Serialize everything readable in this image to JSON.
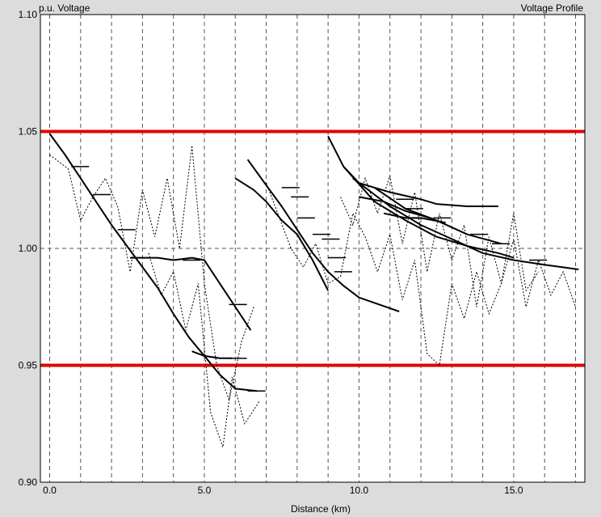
{
  "chart_data": {
    "type": "line",
    "title": "Voltage Profile",
    "ylabel": "p.u. Voltage",
    "xlabel": "Distance (km)",
    "xlim": [
      -0.3,
      17.3
    ],
    "ylim": [
      0.9,
      1.1
    ],
    "x_ticks": [
      {
        "value": 0,
        "label": "0.0"
      },
      {
        "value": 5,
        "label": "5.0"
      },
      {
        "value": 10,
        "label": "10.0"
      },
      {
        "value": 15,
        "label": "15.0"
      }
    ],
    "y_ticks": [
      {
        "value": 0.9,
        "label": "0.90"
      },
      {
        "value": 0.95,
        "label": "0.95"
      },
      {
        "value": 1.0,
        "label": "1.00"
      },
      {
        "value": 1.05,
        "label": "1.05"
      },
      {
        "value": 1.1,
        "label": "1.10"
      }
    ],
    "vertical_grid_x": [
      0,
      1,
      2,
      3,
      4,
      5,
      6,
      7,
      8,
      9,
      10,
      11,
      12,
      13,
      14,
      15,
      16,
      17
    ],
    "grid": true,
    "limit_lines": [
      {
        "value": 1.05,
        "color": "#e00000"
      },
      {
        "value": 0.95,
        "color": "#e00000"
      }
    ],
    "series": [
      {
        "style": "solid",
        "points": [
          [
            0.0,
            1.049
          ],
          [
            0.5,
            1.04
          ],
          [
            1.0,
            1.03
          ],
          [
            1.5,
            1.02
          ],
          [
            2.0,
            1.01
          ],
          [
            2.5,
            1.001
          ],
          [
            3.0,
            0.992
          ],
          [
            3.5,
            0.983
          ],
          [
            4.0,
            0.972
          ],
          [
            4.5,
            0.962
          ],
          [
            5.0,
            0.954
          ],
          [
            5.5,
            0.946
          ],
          [
            6.0,
            0.94
          ],
          [
            6.7,
            0.939
          ]
        ]
      },
      {
        "style": "solid",
        "points": [
          [
            2.6,
            0.996
          ],
          [
            3.5,
            0.996
          ],
          [
            4.0,
            0.995
          ],
          [
            4.6,
            0.996
          ],
          [
            5.0,
            0.995
          ],
          [
            5.5,
            0.985
          ],
          [
            6.0,
            0.975
          ],
          [
            6.5,
            0.965
          ]
        ]
      },
      {
        "style": "solid",
        "points": [
          [
            4.6,
            0.956
          ],
          [
            5.0,
            0.954
          ],
          [
            5.5,
            0.953
          ],
          [
            5.9,
            0.953
          ]
        ]
      },
      {
        "style": "solid",
        "points": [
          [
            6.4,
            1.038
          ],
          [
            7.0,
            1.027
          ],
          [
            7.5,
            1.018
          ],
          [
            8.0,
            1.008
          ],
          [
            8.5,
            0.998
          ],
          [
            9.0,
            0.99
          ],
          [
            9.5,
            0.984
          ],
          [
            10.0,
            0.979
          ],
          [
            11.3,
            0.973
          ]
        ]
      },
      {
        "style": "solid",
        "points": [
          [
            6.0,
            1.03
          ],
          [
            6.6,
            1.025
          ],
          [
            7.0,
            1.02
          ],
          [
            7.5,
            1.012
          ],
          [
            8.0,
            1.006
          ],
          [
            8.5,
            0.995
          ],
          [
            9.0,
            0.982
          ]
        ]
      },
      {
        "style": "solid",
        "points": [
          [
            9.0,
            1.048
          ],
          [
            9.5,
            1.035
          ],
          [
            10.0,
            1.028
          ],
          [
            10.5,
            1.026
          ],
          [
            11.0,
            1.024
          ],
          [
            12.0,
            1.021
          ],
          [
            12.5,
            1.019
          ],
          [
            13.5,
            1.018
          ],
          [
            14.5,
            1.018
          ]
        ]
      },
      {
        "style": "solid",
        "points": [
          [
            9.5,
            1.035
          ],
          [
            10.5,
            1.02
          ],
          [
            11.5,
            1.012
          ],
          [
            12.5,
            1.005
          ],
          [
            13.5,
            1.001
          ],
          [
            14.5,
            0.998
          ],
          [
            15.0,
            0.996
          ]
        ]
      },
      {
        "style": "solid",
        "points": [
          [
            9.8,
            1.03
          ],
          [
            11.0,
            1.018
          ],
          [
            12.0,
            1.01
          ],
          [
            13.0,
            1.004
          ],
          [
            14.0,
            0.998
          ],
          [
            15.0,
            0.995
          ],
          [
            16.0,
            0.993
          ],
          [
            17.1,
            0.991
          ]
        ]
      },
      {
        "style": "solid",
        "points": [
          [
            10.5,
            1.026
          ],
          [
            11.5,
            1.017
          ],
          [
            12.5,
            1.012
          ],
          [
            13.5,
            1.006
          ],
          [
            14.6,
            1.002
          ]
        ]
      },
      {
        "style": "solid",
        "points": [
          [
            10.0,
            1.022
          ],
          [
            10.8,
            1.02
          ],
          [
            11.5,
            1.016
          ],
          [
            12.3,
            1.013
          ]
        ]
      },
      {
        "style": "solid",
        "points": [
          [
            10.8,
            1.015
          ],
          [
            11.5,
            1.013
          ],
          [
            12.0,
            1.013
          ],
          [
            12.8,
            1.011
          ]
        ]
      },
      {
        "style": "dotted",
        "points": [
          [
            0.0,
            1.04
          ],
          [
            0.6,
            1.034
          ],
          [
            1.0,
            1.012
          ],
          [
            1.4,
            1.022
          ],
          [
            1.8,
            1.03
          ],
          [
            2.2,
            1.018
          ],
          [
            2.6,
            0.99
          ],
          [
            3.0,
            1.025
          ],
          [
            3.4,
            1.005
          ],
          [
            3.8,
            1.03
          ],
          [
            4.2,
            1.0
          ],
          [
            4.6,
            1.044
          ],
          [
            5.0,
            0.985
          ],
          [
            5.4,
            0.95
          ],
          [
            5.8,
            0.935
          ],
          [
            6.2,
            0.96
          ],
          [
            6.6,
            0.975
          ]
        ]
      },
      {
        "style": "dotted",
        "points": [
          [
            3.2,
            0.998
          ],
          [
            3.6,
            0.98
          ],
          [
            4.0,
            0.99
          ],
          [
            4.4,
            0.965
          ],
          [
            4.8,
            0.985
          ],
          [
            5.2,
            0.93
          ],
          [
            5.6,
            0.915
          ],
          [
            5.9,
            0.945
          ],
          [
            6.3,
            0.925
          ],
          [
            6.8,
            0.935
          ]
        ]
      },
      {
        "style": "dotted",
        "points": [
          [
            7.0,
            1.028
          ],
          [
            7.4,
            1.014
          ],
          [
            7.8,
            1.0
          ],
          [
            8.2,
            0.992
          ],
          [
            8.6,
            1.002
          ],
          [
            9.0,
            0.985
          ],
          [
            9.4,
            0.988
          ],
          [
            9.8,
            1.015
          ],
          [
            10.2,
            1.005
          ],
          [
            10.6,
            0.99
          ],
          [
            11.0,
            1.006
          ],
          [
            11.4,
            0.978
          ],
          [
            11.8,
            0.995
          ],
          [
            12.2,
            0.955
          ],
          [
            12.6,
            0.95
          ],
          [
            13.0,
            0.985
          ],
          [
            13.4,
            0.97
          ],
          [
            13.8,
            0.99
          ],
          [
            14.2,
            0.972
          ],
          [
            14.6,
            0.985
          ],
          [
            15.0,
            1.004
          ],
          [
            15.4,
            0.975
          ],
          [
            15.8,
            0.995
          ],
          [
            16.2,
            0.98
          ],
          [
            16.6,
            0.99
          ],
          [
            17.0,
            0.975
          ]
        ]
      },
      {
        "style": "dotted",
        "points": [
          [
            9.4,
            1.022
          ],
          [
            9.8,
            1.01
          ],
          [
            10.2,
            1.03
          ],
          [
            10.6,
            1.015
          ],
          [
            11.0,
            1.031
          ],
          [
            11.4,
            1.002
          ],
          [
            11.8,
            1.024
          ],
          [
            12.2,
            0.99
          ],
          [
            12.6,
            1.015
          ],
          [
            13.0,
            0.995
          ],
          [
            13.4,
            1.01
          ],
          [
            13.8,
            0.975
          ],
          [
            14.2,
            1.005
          ],
          [
            14.6,
            0.985
          ],
          [
            15.0,
            1.015
          ],
          [
            15.4,
            0.982
          ],
          [
            15.8,
            0.99
          ]
        ]
      }
    ],
    "taps": [
      [
        0.7,
        1.035
      ],
      [
        1.4,
        1.023
      ],
      [
        2.2,
        1.008
      ],
      [
        4.3,
        0.995
      ],
      [
        5.8,
        0.976
      ],
      [
        5.8,
        0.953
      ],
      [
        6.4,
        0.939
      ],
      [
        7.5,
        1.026
      ],
      [
        7.8,
        1.022
      ],
      [
        8.0,
        1.013
      ],
      [
        8.5,
        1.006
      ],
      [
        8.8,
        1.004
      ],
      [
        9.0,
        0.996
      ],
      [
        9.2,
        0.99
      ],
      [
        11.2,
        1.021
      ],
      [
        11.5,
        1.017
      ],
      [
        12.4,
        1.013
      ],
      [
        13.6,
        1.006
      ],
      [
        14.3,
        1.002
      ],
      [
        15.5,
        0.995
      ]
    ]
  }
}
